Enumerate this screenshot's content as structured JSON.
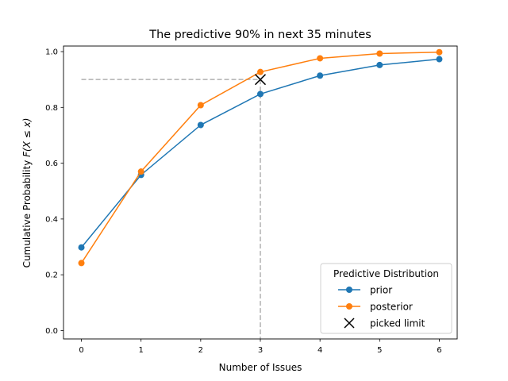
{
  "chart_data": {
    "type": "line",
    "title": "The predictive 90% in next 35 minutes",
    "xlabel": "Number of Issues",
    "ylabel": "Cumulative Probability F(X ≤ x)",
    "xlim": [
      -0.3,
      6.3
    ],
    "ylim": [
      -0.03,
      1.02
    ],
    "x_ticks": [
      0,
      1,
      2,
      3,
      4,
      5,
      6
    ],
    "y_ticks": [
      0.0,
      0.2,
      0.4,
      0.6,
      0.8,
      1.0
    ],
    "x_tick_labels": [
      "0",
      "1",
      "2",
      "3",
      "4",
      "5",
      "6"
    ],
    "y_tick_labels": [
      "0.0",
      "0.2",
      "0.4",
      "0.6",
      "0.8",
      "1.0"
    ],
    "x": [
      0,
      1,
      2,
      3,
      4,
      5,
      6
    ],
    "series": [
      {
        "name": "prior",
        "color": "#1f77b4",
        "values": [
          0.298,
          0.558,
          0.737,
          0.848,
          0.914,
          0.952,
          0.973
        ]
      },
      {
        "name": "posterior",
        "color": "#ff7f0e",
        "values": [
          0.242,
          0.57,
          0.808,
          0.927,
          0.976,
          0.993,
          0.998
        ]
      }
    ],
    "picked_limit": {
      "name": "picked limit",
      "x": 3,
      "y": 0.9,
      "marker": "x",
      "color": "#000000"
    },
    "reference_lines": {
      "color": "#b0b0b0",
      "style": "dashed"
    },
    "legend": {
      "title": "Predictive Distribution",
      "position": "lower-right"
    },
    "grid": false
  }
}
